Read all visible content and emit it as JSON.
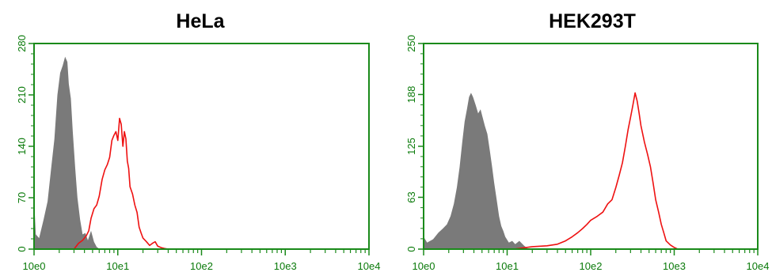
{
  "colors": {
    "axis": "#1a8a1a",
    "tick_label": "#0a7a0a",
    "filled": "#7a7a7a",
    "line": "#ee1111"
  },
  "chart_data": [
    {
      "type": "area",
      "title": "HeLa",
      "xscale": "log",
      "xlim": [
        1,
        10000
      ],
      "ylim": [
        0,
        280
      ],
      "xticks": [
        "10e0",
        "10e1",
        "10e2",
        "10e3",
        "10e4"
      ],
      "yticks": [
        "0",
        "70",
        "140",
        "210",
        "280"
      ],
      "series": [
        {
          "style": "filled",
          "color": "#7a7a7a",
          "x": [
            1.0,
            1.05,
            1.15,
            1.3,
            1.45,
            1.6,
            1.75,
            1.9,
            2.05,
            2.2,
            2.35,
            2.5,
            2.6,
            2.75,
            2.9,
            3.1,
            3.3,
            3.55,
            3.8,
            4.1,
            4.4,
            4.8,
            5.2,
            5.6,
            6.1
          ],
          "y": [
            70,
            20,
            15,
            40,
            65,
            110,
            150,
            210,
            240,
            250,
            262,
            255,
            225,
            205,
            160,
            110,
            70,
            40,
            20,
            22,
            12,
            25,
            10,
            3,
            0
          ]
        },
        {
          "style": "line",
          "color": "#ee1111",
          "x": [
            3.0,
            3.4,
            3.8,
            4.2,
            4.5,
            4.8,
            5.2,
            5.6,
            6.0,
            6.5,
            7.0,
            7.5,
            8.0,
            8.5,
            9.0,
            9.5,
            10.0,
            10.5,
            11.0,
            11.5,
            12.0,
            12.5,
            13.0,
            13.5,
            14.0,
            15.0,
            16.0,
            17.0,
            18.0,
            19.0,
            20.0,
            22.0,
            24.0,
            26.0,
            28.0,
            30.0,
            33.0,
            36.0,
            40.0
          ],
          "y": [
            0,
            8,
            12,
            18,
            25,
            42,
            55,
            60,
            72,
            95,
            108,
            115,
            125,
            148,
            155,
            160,
            148,
            178,
            170,
            140,
            160,
            150,
            120,
            110,
            85,
            75,
            60,
            50,
            30,
            22,
            15,
            10,
            5,
            8,
            10,
            4,
            2,
            1,
            0
          ]
        }
      ]
    },
    {
      "type": "area",
      "title": "HEK293T",
      "xscale": "log",
      "xlim": [
        1,
        10000
      ],
      "ylim": [
        0,
        250
      ],
      "xticks": [
        "10e0",
        "10e1",
        "10e2",
        "10e3",
        "10e4"
      ],
      "yticks": [
        "0",
        "63",
        "125",
        "188",
        "250"
      ],
      "series": [
        {
          "style": "filled",
          "color": "#7a7a7a",
          "x": [
            1.0,
            1.1,
            1.3,
            1.5,
            1.7,
            1.9,
            2.1,
            2.3,
            2.5,
            2.7,
            2.9,
            3.1,
            3.3,
            3.5,
            3.7,
            3.9,
            4.2,
            4.5,
            4.8,
            5.1,
            5.4,
            5.8,
            6.2,
            6.6,
            7.0,
            7.5,
            8.0,
            8.5,
            9.0,
            9.5,
            10.5,
            11.5,
            12.5,
            14.0,
            16.0,
            18.0
          ],
          "y": [
            15,
            8,
            12,
            20,
            25,
            30,
            40,
            55,
            75,
            100,
            130,
            155,
            170,
            185,
            190,
            185,
            175,
            165,
            170,
            160,
            150,
            140,
            120,
            100,
            80,
            60,
            40,
            28,
            22,
            15,
            8,
            10,
            6,
            10,
            4,
            0
          ]
        },
        {
          "style": "line",
          "color": "#ee1111",
          "x": [
            12,
            20,
            30,
            40,
            50,
            60,
            70,
            80,
            90,
            100,
            120,
            140,
            160,
            180,
            200,
            220,
            240,
            260,
            280,
            300,
            320,
            340,
            360,
            380,
            400,
            440,
            480,
            520,
            560,
            600,
            650,
            700,
            750,
            800,
            900,
            1000,
            1100
          ],
          "y": [
            0,
            3,
            4,
            6,
            10,
            15,
            20,
            25,
            30,
            35,
            40,
            45,
            55,
            60,
            75,
            90,
            105,
            125,
            145,
            160,
            175,
            190,
            180,
            165,
            150,
            130,
            115,
            100,
            80,
            60,
            45,
            30,
            20,
            10,
            5,
            2,
            0
          ]
        }
      ]
    }
  ]
}
